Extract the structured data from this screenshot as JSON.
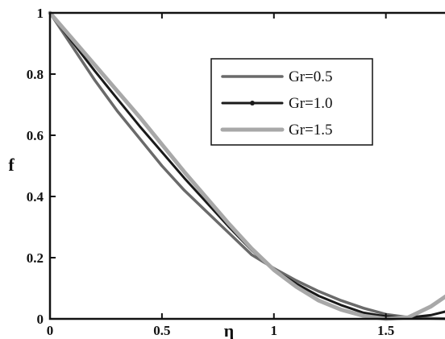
{
  "chart_data": {
    "type": "line",
    "xlabel": "η",
    "ylabel": "f",
    "xlim": [
      0,
      1.8
    ],
    "ylim": [
      0,
      1
    ],
    "x_ticks": [
      "0",
      "0.5",
      "1",
      "1.5"
    ],
    "x_tick_values": [
      0,
      0.5,
      1,
      1.5
    ],
    "y_ticks": [
      "0",
      "0.2",
      "0.4",
      "0.6",
      "0.8",
      "1"
    ],
    "y_tick_values": [
      0,
      0.2,
      0.4,
      0.6,
      0.8,
      1
    ],
    "grid": false,
    "legend_position": "top-right",
    "series": [
      {
        "name": "Gr=0.5",
        "color": "#6a6a6a",
        "x": [
          0,
          0.1,
          0.2,
          0.3,
          0.4,
          0.5,
          0.6,
          0.7,
          0.8,
          0.9,
          1.0,
          1.1,
          1.2,
          1.3,
          1.4,
          1.5,
          1.6,
          1.7,
          1.8
        ],
        "values": [
          1.0,
          0.89,
          0.78,
          0.68,
          0.59,
          0.5,
          0.42,
          0.35,
          0.28,
          0.21,
          0.165,
          0.125,
          0.09,
          0.06,
          0.035,
          0.015,
          0.005,
          0.002,
          0.0
        ]
      },
      {
        "name": "Gr=1.0",
        "color": "#1a1a1a",
        "x": [
          0,
          0.1,
          0.2,
          0.3,
          0.4,
          0.5,
          0.6,
          0.7,
          0.8,
          0.9,
          1.0,
          1.1,
          1.2,
          1.3,
          1.4,
          1.5,
          1.6,
          1.7,
          1.8
        ],
        "values": [
          1.0,
          0.905,
          0.81,
          0.72,
          0.63,
          0.545,
          0.46,
          0.38,
          0.3,
          0.225,
          0.16,
          0.115,
          0.075,
          0.045,
          0.02,
          0.008,
          0.004,
          0.012,
          0.03
        ]
      },
      {
        "name": "Gr=1.5",
        "color": "#a8a8a8",
        "x": [
          0,
          0.1,
          0.2,
          0.3,
          0.4,
          0.5,
          0.6,
          0.7,
          0.8,
          0.9,
          1.0,
          1.1,
          1.2,
          1.3,
          1.4,
          1.5,
          1.6,
          1.7,
          1.8
        ],
        "values": [
          1.0,
          0.915,
          0.83,
          0.745,
          0.66,
          0.57,
          0.48,
          0.395,
          0.31,
          0.23,
          0.16,
          0.105,
          0.06,
          0.03,
          0.01,
          0.0,
          0.005,
          0.04,
          0.09
        ]
      }
    ]
  }
}
